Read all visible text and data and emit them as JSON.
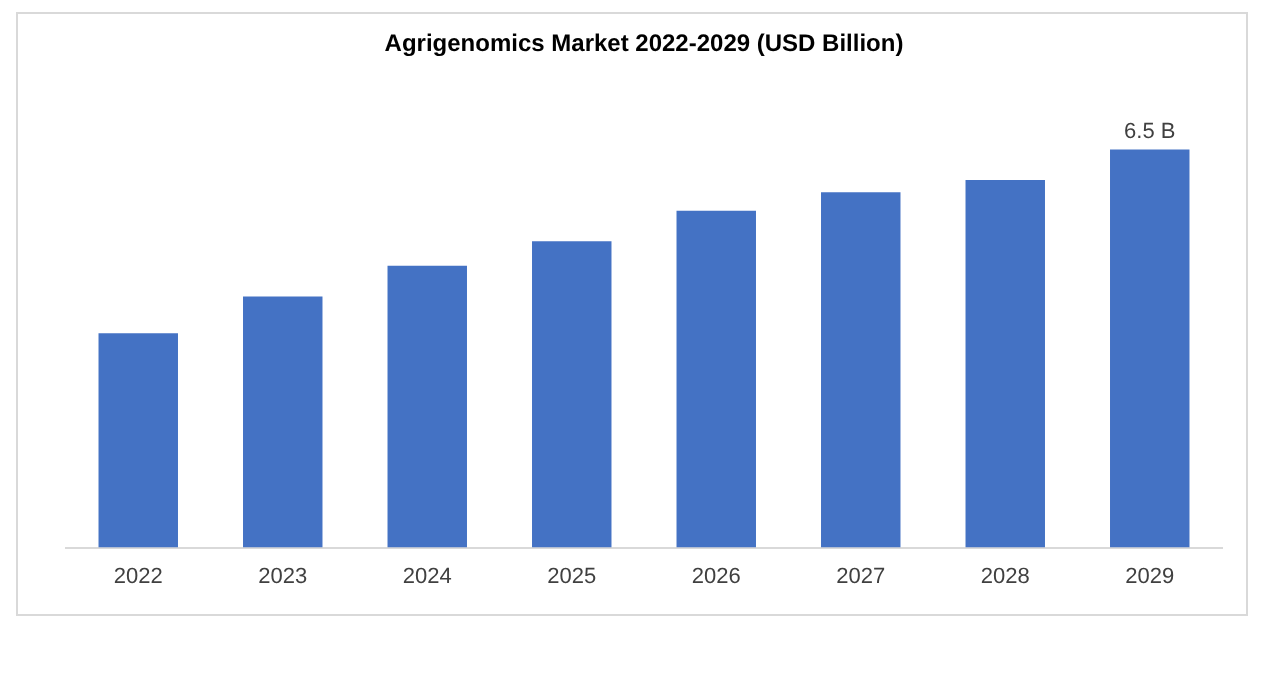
{
  "chart_data": {
    "type": "bar",
    "title": "Agrigenomics Market 2022-2029 (USD Billion)",
    "categories": [
      "2022",
      "2023",
      "2024",
      "2025",
      "2026",
      "2027",
      "2028",
      "2029"
    ],
    "values": [
      3.5,
      4.1,
      4.6,
      5.0,
      5.5,
      5.8,
      6.0,
      6.5
    ],
    "tick_labels": "x",
    "value_labels": [
      null,
      null,
      null,
      null,
      null,
      null,
      null,
      "6.5 B"
    ],
    "color": "#4472c4",
    "grid": false,
    "legend": false
  }
}
